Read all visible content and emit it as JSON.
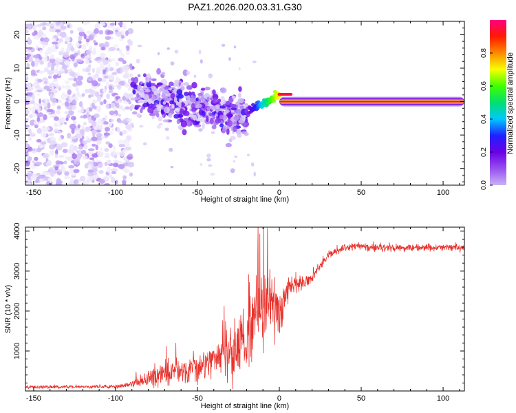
{
  "title": "PAZ1.2026.020.03.31.G30",
  "colors": {
    "snr_line": "#e8312b",
    "axis": "#000000",
    "background": "#ffffff",
    "colormap": [
      "#ffffff",
      "#c9b3f5",
      "#9650f0",
      "#6a00e6",
      "#2020ff",
      "#00c8ff",
      "#00e070",
      "#40ff00",
      "#f5ff00",
      "#ff8a00",
      "#ff1a00",
      "#ff0080"
    ]
  },
  "chart_data": [
    {
      "type": "heatmap",
      "name": "spectrogram",
      "title": "PAZ1.2026.020.03.31.G30",
      "xlabel": "Height of straight line (km)",
      "ylabel": "Frequency (Hz)",
      "xlim": [
        -155,
        113
      ],
      "ylim": [
        -25,
        24
      ],
      "xticks": [
        -150,
        -100,
        -50,
        0,
        50,
        100
      ],
      "yticks": [
        -20,
        -10,
        0,
        10,
        20
      ],
      "colorbar": {
        "label": "Normalized spectral amplitude",
        "ticks": [
          0.0,
          0.2,
          0.4,
          0.6,
          0.8
        ],
        "range": [
          0,
          1
        ]
      },
      "features": [
        {
          "desc": "scattered noise",
          "x_range": [
            -155,
            -90
          ],
          "freq_range": [
            -25,
            24
          ],
          "amplitude": [
            0.02,
            0.15
          ]
        },
        {
          "desc": "multipath band",
          "x_range": [
            -90,
            -20
          ],
          "freq_center": [
            3,
            -5
          ],
          "freq_spread": 6,
          "amplitude": [
            0.05,
            0.35
          ]
        },
        {
          "desc": "converging signal",
          "x_range": [
            -20,
            0
          ],
          "freq_center": [
            -3,
            2
          ],
          "amplitude": [
            0.2,
            0.9
          ]
        },
        {
          "desc": "single tone",
          "x_range": [
            0,
            113
          ],
          "freq": 0,
          "amplitude": 1.0
        }
      ]
    },
    {
      "type": "line",
      "name": "snr",
      "xlabel": "Height of straight line (km)",
      "ylabel": "SNR (10 * v/v)",
      "xlim": [
        -155,
        113
      ],
      "ylim": [
        0,
        4100
      ],
      "xticks": [
        -150,
        -100,
        -50,
        0,
        50,
        100
      ],
      "yticks": [
        1000,
        2000,
        3000,
        4000
      ],
      "profile": {
        "x": [
          -155,
          -100,
          -90,
          -85,
          -75,
          -60,
          -50,
          -40,
          -30,
          -20,
          -15,
          -10,
          -5,
          0,
          5,
          10,
          15,
          20,
          25,
          30,
          35,
          40,
          50,
          60,
          80,
          100,
          113
        ],
        "mean": [
          100,
          110,
          160,
          250,
          400,
          500,
          580,
          720,
          900,
          1300,
          1800,
          2100,
          2300,
          1850,
          2500,
          2700,
          2650,
          2850,
          3150,
          3400,
          3500,
          3580,
          3630,
          3600,
          3580,
          3600,
          3580
        ],
        "noise": [
          35,
          35,
          60,
          120,
          220,
          260,
          320,
          380,
          450,
          650,
          750,
          800,
          700,
          500,
          300,
          200,
          150,
          120,
          100,
          90,
          85,
          85,
          85,
          85,
          85,
          85,
          85
        ]
      }
    }
  ]
}
